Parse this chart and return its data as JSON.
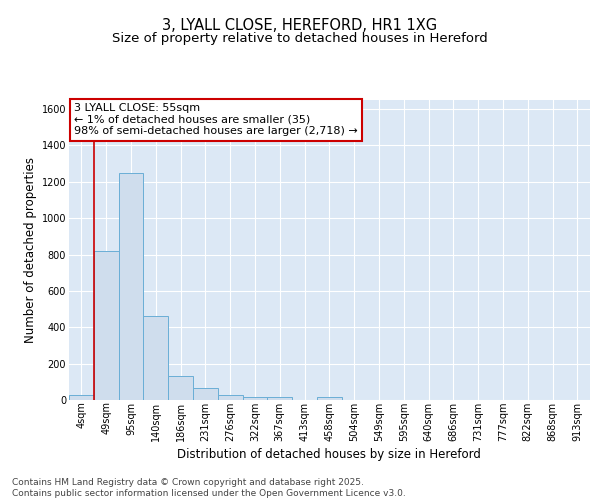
{
  "title1": "3, LYALL CLOSE, HEREFORD, HR1 1XG",
  "title2": "Size of property relative to detached houses in Hereford",
  "xlabel": "Distribution of detached houses by size in Hereford",
  "ylabel": "Number of detached properties",
  "footer": "Contains HM Land Registry data © Crown copyright and database right 2025.\nContains public sector information licensed under the Open Government Licence v3.0.",
  "bin_labels": [
    "4sqm",
    "49sqm",
    "95sqm",
    "140sqm",
    "186sqm",
    "231sqm",
    "276sqm",
    "322sqm",
    "367sqm",
    "413sqm",
    "458sqm",
    "504sqm",
    "549sqm",
    "595sqm",
    "640sqm",
    "686sqm",
    "731sqm",
    "777sqm",
    "822sqm",
    "868sqm",
    "913sqm"
  ],
  "bar_values": [
    30,
    820,
    1250,
    460,
    130,
    65,
    28,
    18,
    15,
    0,
    15,
    0,
    0,
    0,
    0,
    0,
    0,
    0,
    0,
    0,
    0
  ],
  "bar_color": "#cfdded",
  "bar_edgecolor": "#6aaed6",
  "vline_x": 0.5,
  "vline_color": "#cc0000",
  "ylim": [
    0,
    1650
  ],
  "yticks": [
    0,
    200,
    400,
    600,
    800,
    1000,
    1200,
    1400,
    1600
  ],
  "annotation_text": "3 LYALL CLOSE: 55sqm\n← 1% of detached houses are smaller (35)\n98% of semi-detached houses are larger (2,718) →",
  "annotation_box_color": "#ffffff",
  "annotation_border_color": "#cc0000",
  "fig_bg_color": "#ffffff",
  "plot_bg_color": "#dce8f5",
  "grid_color": "#ffffff",
  "title_fontsize": 10.5,
  "subtitle_fontsize": 9.5,
  "tick_fontsize": 7,
  "ylabel_fontsize": 8.5,
  "xlabel_fontsize": 8.5,
  "annotation_fontsize": 8,
  "footer_fontsize": 6.5
}
